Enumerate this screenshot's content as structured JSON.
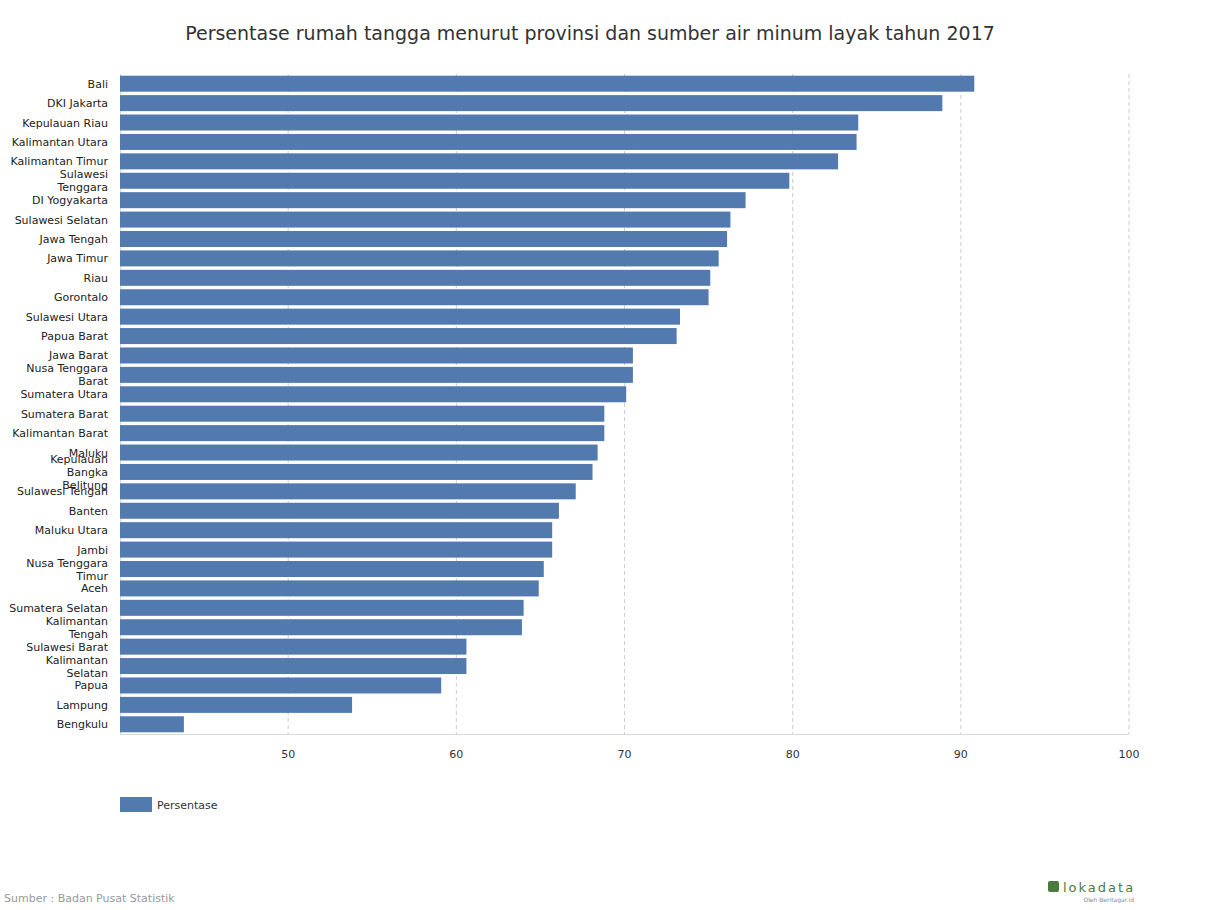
{
  "chart_data": {
    "type": "bar",
    "orientation": "horizontal",
    "title": "Persentase rumah tangga menurut provinsi dan sumber air minum layak tahun 2017",
    "categories": [
      "Bali",
      "DKI Jakarta",
      "Kepulauan Riau",
      "Kalimantan Utara",
      "Kalimantan Timur",
      "Sulawesi Tenggara",
      "DI Yogyakarta",
      "Sulawesi Selatan",
      "Jawa Tengah",
      "Jawa Timur",
      "Riau",
      "Gorontalo",
      "Sulawesi Utara",
      "Papua Barat",
      "Jawa Barat",
      "Nusa Tenggara Barat",
      "Sumatera Utara",
      "Sumatera Barat",
      "Kalimantan Barat",
      "Maluku",
      "Kepulauan Bangka Belitung",
      "Sulawesi Tengah",
      "Banten",
      "Maluku Utara",
      "Jambi",
      "Nusa Tenggara Timur",
      "Aceh",
      "Sumatera Selatan",
      "Kalimantan Tengah",
      "Sulawesi Barat",
      "Kalimantan Selatan",
      "Papua",
      "Lampung",
      "Bengkulu"
    ],
    "series": [
      {
        "name": "Persentase",
        "color": "#527aaf",
        "values": [
          90.8,
          88.9,
          83.9,
          83.8,
          82.7,
          79.8,
          77.2,
          76.3,
          76.1,
          75.6,
          75.1,
          75.0,
          73.3,
          73.1,
          70.5,
          70.5,
          70.1,
          68.8,
          68.8,
          68.4,
          68.1,
          67.1,
          66.1,
          65.7,
          65.7,
          65.2,
          64.9,
          64.0,
          63.9,
          60.6,
          60.6,
          59.1,
          53.8,
          43.8
        ]
      }
    ],
    "xlim": [
      40,
      100
    ],
    "xticks": [
      50,
      60,
      70,
      80,
      90,
      100
    ],
    "grid": true,
    "legend": "bottom",
    "annotations": [
      "Sumber : Badan Pusat Statistik",
      "lokadata",
      "Oleh Beritagar.id"
    ]
  }
}
